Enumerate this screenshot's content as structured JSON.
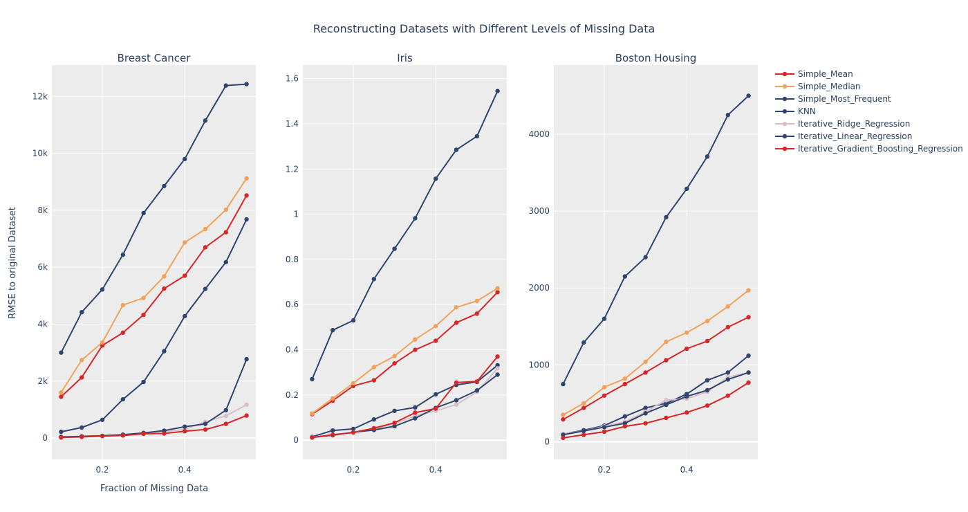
{
  "chart_data": {
    "type": "line",
    "title": "Reconstructing Datasets with Different Levels of Missing Data",
    "xlabel": "Fraction of Missing Data",
    "ylabel": "RMSE to original Dataset",
    "legend_position": "right",
    "grid": true,
    "x": [
      0.1,
      0.15,
      0.2,
      0.25,
      0.3,
      0.35,
      0.4,
      0.45,
      0.5,
      0.55
    ],
    "legend": [
      {
        "name": "Simple_Mean",
        "color": "#d62728"
      },
      {
        "name": "Simple_Median",
        "color": "#f0a35a"
      },
      {
        "name": "Simple_Most_Frequent",
        "color": "#2f4570"
      },
      {
        "name": "KNN",
        "color": "#2f4570"
      },
      {
        "name": "Iterative_Ridge_Regression",
        "color": "#d8bfc8"
      },
      {
        "name": "Iterative_Linear_Regression",
        "color": "#2f4570"
      },
      {
        "name": "Iterative_Gradient_Boosting_Regression",
        "color": "#d62728"
      }
    ],
    "panels": [
      {
        "title": "Breast Cancer",
        "ylim": [
          -750,
          13100
        ],
        "yticks": [
          0,
          2000,
          4000,
          6000,
          8000,
          10000,
          12000
        ],
        "ytick_labels": [
          "0",
          "2k",
          "4k",
          "6k",
          "8k",
          "10k",
          "12k"
        ],
        "xticks": [
          0.2,
          0.4
        ],
        "xtick_labels": [
          "0.2",
          "0.4"
        ],
        "series": [
          {
            "name": "Simple_Mean",
            "values": [
              1450,
              2130,
              3250,
              3700,
              4330,
              5250,
              5700,
              6700,
              7230,
              8520
            ]
          },
          {
            "name": "Simple_Median",
            "values": [
              1600,
              2740,
              3360,
              4670,
              4920,
              5680,
              6870,
              7340,
              8020,
              9120
            ]
          },
          {
            "name": "Simple_Most_Frequent",
            "values": [
              3000,
              4420,
              5220,
              6440,
              7900,
              8850,
              9800,
              11150,
              12380,
              12430
            ]
          },
          {
            "name": "KNN",
            "values": [
              220,
              370,
              640,
              1360,
              1970,
              3050,
              4280,
              5240,
              6180,
              7680
            ]
          },
          {
            "name": "Iterative_Ridge_Regression",
            "values": [
              30,
              50,
              70,
              110,
              170,
              230,
              300,
              570,
              780,
              1170
            ]
          },
          {
            "name": "Iterative_Linear_Regression",
            "values": [
              40,
              60,
              80,
              120,
              180,
              260,
              400,
              500,
              980,
              2770
            ]
          },
          {
            "name": "Iterative_Gradient_Boosting_Regression",
            "values": [
              20,
              40,
              70,
              90,
              150,
              160,
              240,
              300,
              500,
              790
            ]
          }
        ]
      },
      {
        "title": "Iris",
        "ylim": [
          -0.085,
          1.66
        ],
        "yticks": [
          0,
          0.2,
          0.4,
          0.6,
          0.8,
          1,
          1.2,
          1.4,
          1.6
        ],
        "ytick_labels": [
          "0",
          "0.2",
          "0.4",
          "0.6",
          "0.8",
          "1",
          "1.2",
          "1.4",
          "1.6"
        ],
        "xticks": [
          0.2,
          0.4
        ],
        "xtick_labels": [
          "0.2",
          "0.4"
        ],
        "series": [
          {
            "name": "Simple_Mean",
            "values": [
              0.115,
              0.175,
              0.24,
              0.265,
              0.34,
              0.4,
              0.44,
              0.52,
              0.56,
              0.655
            ]
          },
          {
            "name": "Simple_Median",
            "values": [
              0.118,
              0.185,
              0.252,
              0.323,
              0.372,
              0.446,
              0.505,
              0.588,
              0.616,
              0.672
            ]
          },
          {
            "name": "Simple_Most_Frequent",
            "values": [
              0.27,
              0.487,
              0.53,
              0.713,
              0.847,
              0.982,
              1.157,
              1.285,
              1.345,
              1.545
            ]
          },
          {
            "name": "KNN",
            "values": [
              0.015,
              0.043,
              0.05,
              0.092,
              0.13,
              0.145,
              0.203,
              0.245,
              0.258,
              0.332
            ]
          },
          {
            "name": "Iterative_Ridge_Regression",
            "values": [
              0.014,
              0.022,
              0.036,
              0.05,
              0.072,
              0.108,
              0.13,
              0.158,
              0.213,
              0.318
            ]
          },
          {
            "name": "Iterative_Linear_Regression",
            "values": [
              0.012,
              0.022,
              0.035,
              0.045,
              0.062,
              0.097,
              0.143,
              0.177,
              0.22,
              0.29
            ]
          },
          {
            "name": "Iterative_Gradient_Boosting_Regression",
            "values": [
              0.012,
              0.024,
              0.034,
              0.053,
              0.077,
              0.122,
              0.14,
              0.255,
              0.26,
              0.37
            ]
          }
        ]
      },
      {
        "title": "Boston Housing",
        "ylim": [
          -230,
          4900
        ],
        "yticks": [
          0,
          1000,
          2000,
          3000,
          4000
        ],
        "ytick_labels": [
          "0",
          "1000",
          "2000",
          "3000",
          "4000"
        ],
        "xticks": [
          0.2,
          0.4
        ],
        "xtick_labels": [
          "0.2",
          "0.4"
        ],
        "series": [
          {
            "name": "Simple_Mean",
            "values": [
              290,
              440,
              600,
              750,
              900,
              1060,
              1210,
              1310,
              1490,
              1620
            ]
          },
          {
            "name": "Simple_Median",
            "values": [
              350,
              500,
              710,
              820,
              1040,
              1300,
              1420,
              1570,
              1760,
              1970
            ]
          },
          {
            "name": "Simple_Most_Frequent",
            "values": [
              750,
              1290,
              1600,
              2150,
              2400,
              2920,
              3290,
              3710,
              4250,
              4500
            ]
          },
          {
            "name": "KNN",
            "values": [
              100,
              150,
              210,
              330,
              440,
              500,
              620,
              800,
              900,
              1120
            ]
          },
          {
            "name": "Iterative_Ridge_Regression",
            "values": [
              100,
              140,
              200,
              260,
              390,
              540,
              560,
              650,
              840,
              900
            ]
          },
          {
            "name": "Iterative_Linear_Regression",
            "values": [
              90,
              140,
              190,
              240,
              370,
              480,
              590,
              670,
              810,
              900
            ]
          },
          {
            "name": "Iterative_Gradient_Boosting_Regression",
            "values": [
              50,
              90,
              130,
              200,
              240,
              310,
              380,
              470,
              600,
              770
            ]
          }
        ]
      }
    ]
  }
}
